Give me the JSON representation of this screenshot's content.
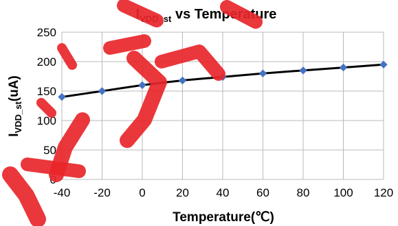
{
  "chart_data": {
    "type": "line",
    "title_main": "I",
    "title_sub": "VDD_st",
    "title_rest": " vs Temperature",
    "xlabel": "Temperature(℃)",
    "ylabel_main": "I",
    "ylabel_sub": "VDD_st",
    "ylabel_rest": "(uA)",
    "x": [
      -40,
      -20,
      0,
      20,
      40,
      60,
      80,
      100,
      120
    ],
    "series": [
      {
        "values": [
          140,
          150,
          160,
          168,
          174,
          180,
          185,
          190,
          195
        ],
        "marker_color": "#4472c4",
        "line_color": "#000000"
      }
    ],
    "xlim": [
      -40,
      120
    ],
    "ylim": [
      0,
      250
    ],
    "xticks": [
      "-40",
      "-20",
      "0",
      "20",
      "40",
      "60",
      "80",
      "100",
      "120"
    ],
    "yticks": [
      "0",
      "50",
      "100",
      "150",
      "200",
      "250"
    ],
    "grid": true,
    "legend": "none",
    "watermark_color": "#e8262a"
  }
}
